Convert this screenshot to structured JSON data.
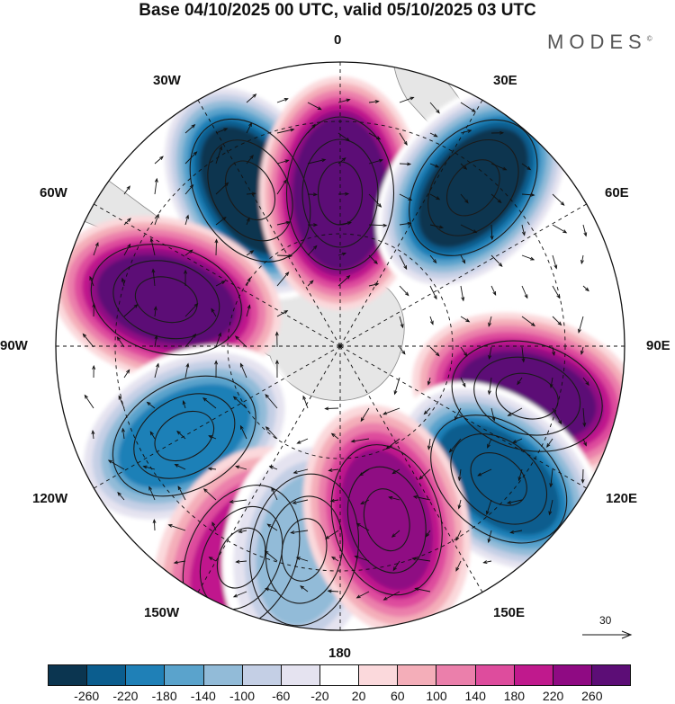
{
  "title": "Base 04/10/2025 00 UTC, valid 05/10/2025 03 UTC",
  "brand": "MODES",
  "brand_mark": "©",
  "longitude_labels": {
    "top": "0",
    "top_right": "30E",
    "right_upper": "60E",
    "right": "90E",
    "right_lower": "120E",
    "bottom_right": "150E",
    "bottom": "180",
    "bottom_left": "150W",
    "left_lower": "120W",
    "left": "90W",
    "left_upper": "60W",
    "top_left": "30W"
  },
  "reference_vector": "30",
  "colorbar": {
    "colors": [
      "#0b3550",
      "#0b5d8e",
      "#1f80b7",
      "#5aa3cc",
      "#92bbd8",
      "#c4cfe5",
      "#e5e3f0",
      "#ffffff",
      "#fbd9dc",
      "#f4aeb9",
      "#eb7fab",
      "#de4c9d",
      "#c0198d",
      "#8f0a83",
      "#5c0d76"
    ],
    "labels": [
      "-260",
      "-220",
      "-180",
      "-140",
      "-100",
      "-60",
      "-20",
      "20",
      "60",
      "100",
      "140",
      "180",
      "220",
      "260"
    ]
  },
  "anomaly_centers": [
    {
      "sign": "negative",
      "level": -260,
      "bearing_deg": 330
    },
    {
      "sign": "positive",
      "level": 260,
      "bearing_deg": 0
    },
    {
      "sign": "negative",
      "level": -260,
      "bearing_deg": 40
    },
    {
      "sign": "positive",
      "level": 220,
      "bearing_deg": 285
    },
    {
      "sign": "positive",
      "level": 220,
      "bearing_deg": 105
    },
    {
      "sign": "negative",
      "level": -220,
      "bearing_deg": 130
    },
    {
      "sign": "negative",
      "level": -180,
      "bearing_deg": 240
    },
    {
      "sign": "positive",
      "level": 140,
      "bearing_deg": 205
    },
    {
      "sign": "negative",
      "level": -100,
      "bearing_deg": 190
    },
    {
      "sign": "positive",
      "level": 180,
      "bearing_deg": 165
    }
  ]
}
